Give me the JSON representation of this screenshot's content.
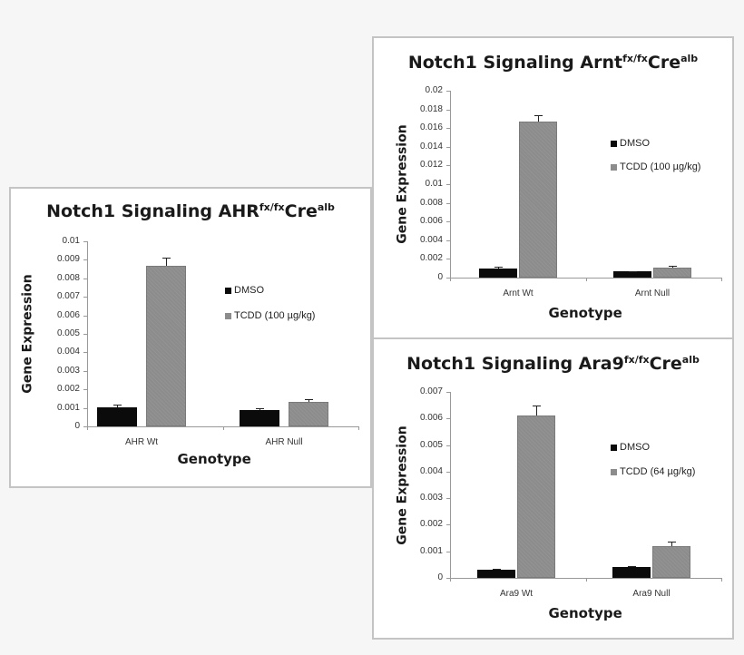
{
  "chart_data": [
    {
      "type": "bar",
      "title": "Notch1 Signaling AHR",
      "title_parts": {
        "base": "Notch1 Signaling AHR",
        "sup1": "fx/fx",
        "mid": "Cre",
        "sup2": "alb"
      },
      "xlabel": "Genotype",
      "ylabel": "Gene Expression",
      "categories": [
        "AHR Wt",
        "AHR Null"
      ],
      "series": [
        {
          "name": "DMSO",
          "color": "#0b0b0b",
          "values": [
            0.00103,
            0.00088
          ],
          "error_top": [
            0.0012,
            0.00097
          ]
        },
        {
          "name": "TCDD (100 µg/kg)",
          "color": "#8c8c8c",
          "values": [
            0.0087,
            0.0013
          ],
          "error_top": [
            0.0091,
            0.00145
          ]
        }
      ],
      "yticks": [
        "0",
        "0.001",
        "0.002",
        "0.003",
        "0.004",
        "0.005",
        "0.006",
        "0.007",
        "0.008",
        "0.009",
        "0.01"
      ],
      "ylim": [
        0,
        0.01
      ],
      "grid": false,
      "legend_position": "right"
    },
    {
      "type": "bar",
      "title": "Notch1 Signaling Arnt",
      "title_parts": {
        "base": "Notch1 Signaling Arnt",
        "sup1": "fx/fx",
        "mid": "Cre",
        "sup2": "alb"
      },
      "xlabel": "Genotype",
      "ylabel": "Gene Expression",
      "categories": [
        "Arnt Wt",
        "Arnt Null"
      ],
      "series": [
        {
          "name": "DMSO",
          "color": "#0b0b0b",
          "values": [
            0.001,
            0.00065
          ],
          "error_top": [
            0.00115,
            0.00072
          ]
        },
        {
          "name": "TCDD (100 µg/kg)",
          "color": "#8c8c8c",
          "values": [
            0.0167,
            0.0011
          ],
          "error_top": [
            0.0174,
            0.0013
          ]
        }
      ],
      "yticks": [
        "0",
        "0.002",
        "0.004",
        "0.006",
        "0.008",
        "0.01",
        "0.012",
        "0.014",
        "0.016",
        "0.018",
        "0.02"
      ],
      "ylim": [
        0,
        0.02
      ],
      "grid": false,
      "legend_position": "right"
    },
    {
      "type": "bar",
      "title": "Notch1 Signaling Ara9",
      "title_parts": {
        "base": "Notch1 Signaling Ara9",
        "sup1": "fx/fx",
        "mid": "Cre",
        "sup2": "alb"
      },
      "xlabel": "Genotype",
      "ylabel": "Gene Expression",
      "categories": [
        "Ara9 Wt",
        "Ara9 Null"
      ],
      "series": [
        {
          "name": "DMSO",
          "color": "#0b0b0b",
          "values": [
            0.0003,
            0.0004
          ],
          "error_top": [
            0.00035,
            0.00045
          ]
        },
        {
          "name": "TCDD (64 µg/kg)",
          "color": "#8c8c8c",
          "values": [
            0.0061,
            0.0012
          ],
          "error_top": [
            0.0065,
            0.00138
          ]
        }
      ],
      "yticks": [
        "0",
        "0.001",
        "0.002",
        "0.003",
        "0.004",
        "0.005",
        "0.006",
        "0.007"
      ],
      "ylim": [
        0,
        0.007
      ],
      "grid": false,
      "legend_position": "right"
    }
  ]
}
